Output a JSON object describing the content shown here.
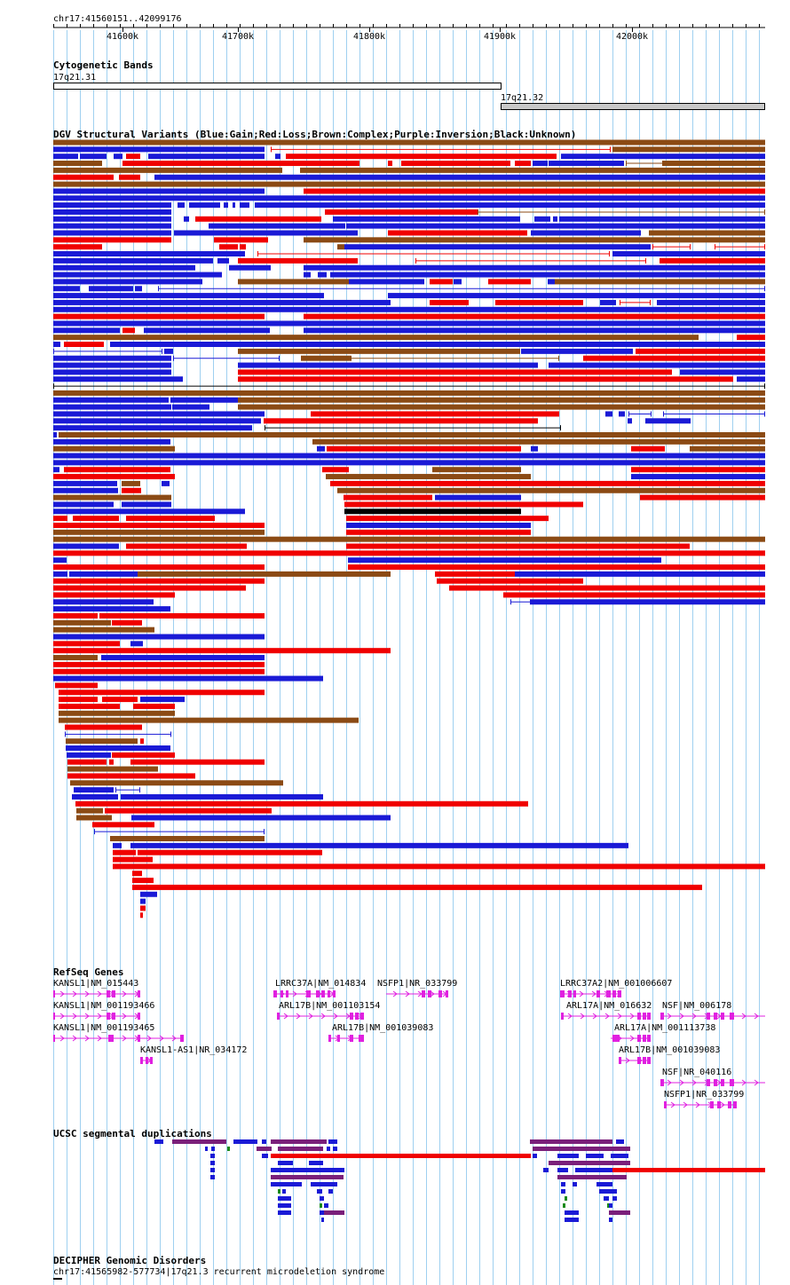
{
  "position": "chr17:41560151..42099176",
  "ruler": {
    "ticks": [
      "41600k",
      "41700k",
      "41800k",
      "41900k",
      "42000k"
    ]
  },
  "colors": {
    "gain": "#1a1ad6",
    "loss": "#f00000",
    "complex": "#8b4a14",
    "inversion": "#7a1f7a",
    "unknown": "#000000",
    "gene": "#e020e0",
    "segdup_green": "#1a8a1a",
    "grid": "#9fd0f0"
  },
  "tracks": {
    "cytoband": {
      "title": "Cytogenetic Bands",
      "bands": [
        {
          "name": "17q21.31",
          "fill": "#ffffff"
        },
        {
          "name": "17q21.32",
          "fill": "#c8c8c8"
        }
      ]
    },
    "dgv": {
      "title": "DGV Structural Variants (Blue:Gain;Red:Loss;Brown:Complex;Purple:Inversion;Black:Unknown)"
    },
    "refseq": {
      "title": "RefSeq Genes",
      "genes": [
        "KANSL1|NM_015443",
        "KANSL1|NM_001193466",
        "KANSL1|NM_001193465",
        "KANSL1-AS1|NR_034172",
        "LRRC37A|NM_014834",
        "ARL17B|NM_001103154",
        "ARL17B|NM_001039083",
        "NSFP1|NR_033799",
        "LRRC37A2|NM_001006607",
        "ARL17A|NM_016632",
        "ARL17A|NM_001113738",
        "ARL17B|NM_001039083",
        "NSF|NM_006178",
        "NSF|NR_040116",
        "NSFP1|NR_033799"
      ]
    },
    "segdup": {
      "title": "UCSC segmental duplications"
    },
    "decipher": {
      "title": "DECIPHER Genomic Disorders",
      "feature": "chr17:41565982-577734|17q21.3 recurrent microdeletion syndrome"
    }
  }
}
